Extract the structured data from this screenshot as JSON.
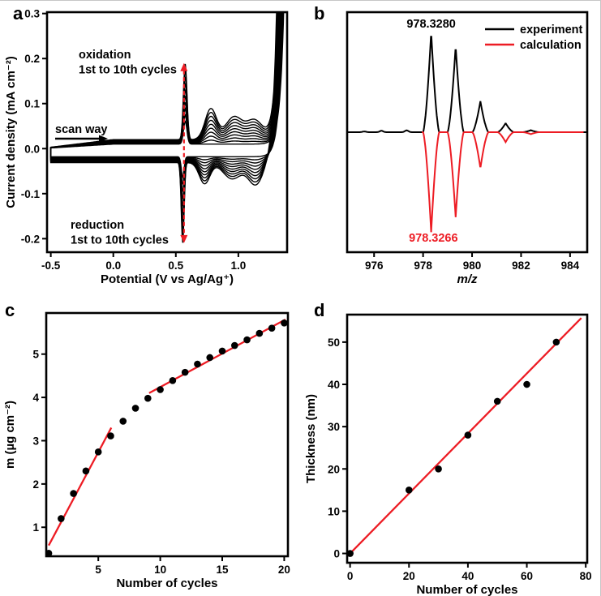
{
  "figure": {
    "background": "#ffffff",
    "frame_border_color": "#c6c6c6",
    "black": "#000000",
    "red": "#ed1c24"
  },
  "panels": {
    "a": {
      "label": "a"
    },
    "b": {
      "label": "b"
    },
    "c": {
      "label": "c"
    },
    "d": {
      "label": "d"
    }
  },
  "chart_data": [
    {
      "panel": "a",
      "type": "line",
      "subtype": "cyclic-voltammetry",
      "xlabel": "Potential (V vs Ag/Ag⁺)",
      "ylabel": "Current density (mA cm⁻²)",
      "xlim": [
        -0.53,
        1.39
      ],
      "ylim": [
        -0.23,
        0.303
      ],
      "xticks": [
        -0.5,
        0.0,
        0.5,
        1.0
      ],
      "xtick_labels": [
        "-0.5",
        "0.0",
        "0.5",
        "1.0"
      ],
      "yticks": [
        -0.2,
        -0.1,
        0.0,
        0.1,
        0.2,
        0.3
      ],
      "ytick_labels": [
        "-0.2",
        "-0.1",
        "0.0",
        "0.1",
        "0.2",
        "0.3"
      ],
      "n_cycles": 10,
      "line_color": "#000000",
      "cv_model": {
        "x_start": -0.5,
        "x_end": 1.39,
        "upper_baseline_first": 0.01,
        "upper_baseline_last": 0.02,
        "lower_baseline_first": -0.018,
        "lower_baseline_last": -0.031,
        "oxidation_peak": {
          "x": 0.575,
          "width": 0.02,
          "amp_first": 0.05,
          "amp_last": 0.168
        },
        "oxidation_humps": [
          {
            "x": 0.78,
            "width": 0.065,
            "amp": 0.068
          },
          {
            "x": 0.965,
            "width": 0.095,
            "amp": 0.05
          },
          {
            "x": 1.13,
            "width": 0.09,
            "amp": 0.042
          }
        ],
        "reduction_peak": {
          "x": 0.555,
          "width": 0.016,
          "amp_first": 0.045,
          "amp_last": 0.178
        },
        "reduction_humps": [
          {
            "x": 0.73,
            "width": 0.06,
            "amp": 0.047
          },
          {
            "x": 0.95,
            "width": 0.1,
            "amp": 0.036
          },
          {
            "x": 1.14,
            "width": 0.085,
            "amp": 0.05
          }
        ],
        "anodic_rise": {
          "onset_first": 1.365,
          "onset_last": 1.317,
          "tau": 0.03,
          "scale": 0.32
        },
        "return_rise": {
          "onset_first": 1.352,
          "onset_last": 1.304,
          "tau": 0.03,
          "scale": 0.32
        }
      },
      "annotations": {
        "oxidation": [
          "oxidation",
          "1st to 10th cycles"
        ],
        "scan_way": "scan way",
        "reduction": [
          "reduction",
          "1st to 10th cycles"
        ]
      },
      "peak_marker_arrow": {
        "x": 0.565,
        "y_top": 0.19,
        "y_bottom": -0.21,
        "color": "#ed1c24"
      }
    },
    {
      "panel": "b",
      "type": "line",
      "subtype": "mass-spectrum",
      "xlabel": "m/z",
      "xlabel_italic": true,
      "xlim": [
        974.9,
        984.7
      ],
      "ylim": [
        -120,
        120
      ],
      "xticks": [
        976,
        978,
        980,
        982,
        984
      ],
      "xtick_labels": [
        "976",
        "978",
        "980",
        "982",
        "984"
      ],
      "yticks": [],
      "ytick_labels": [],
      "peak_half_width": 0.33,
      "series": [
        {
          "name": "experiment",
          "color": "#000000",
          "direction": 1,
          "x_start": 974.9,
          "x_end": 984.7,
          "peaks": [
            [
              978.33,
              100
            ],
            [
              979.33,
              86
            ],
            [
              980.34,
              31
            ],
            [
              981.37,
              9
            ],
            [
              982.4,
              2
            ]
          ],
          "baseline_bumps": [
            [
              976.3,
              1.4
            ],
            [
              977.33,
              1.8
            ],
            [
              975.6,
              0.7
            ]
          ],
          "peak_label": {
            "text": "978.3280",
            "x": 978.33
          }
        },
        {
          "name": "calculation",
          "color": "#ed1c24",
          "direction": -1,
          "x_start": 977.95,
          "x_end": 984.55,
          "peaks": [
            [
              978.33,
              100
            ],
            [
              979.33,
              85
            ],
            [
              980.34,
              36
            ],
            [
              981.37,
              10
            ],
            [
              982.4,
              2
            ]
          ],
          "baseline_bumps": [],
          "peak_label": {
            "text": "978.3266",
            "x": 978.42
          }
        }
      ],
      "legend": [
        {
          "label": "experiment",
          "color": "#000000"
        },
        {
          "label": "calculation",
          "color": "#ed1c24"
        }
      ]
    },
    {
      "panel": "c",
      "type": "scatter",
      "xlabel": "Number of cycles",
      "ylabel": "m (µg cm⁻²)",
      "xlim": [
        0.8,
        20.3
      ],
      "ylim": [
        0.33,
        5.95
      ],
      "xticks": [
        5,
        10,
        15,
        20
      ],
      "xtick_labels": [
        "5",
        "10",
        "15",
        "20"
      ],
      "yticks": [
        1,
        2,
        3,
        4,
        5
      ],
      "ytick_labels": [
        "1",
        "2",
        "3",
        "4",
        "5"
      ],
      "marker_color": "#000000",
      "x": [
        1,
        2,
        3,
        4,
        5,
        6,
        7,
        8,
        9,
        10,
        11,
        12,
        13,
        14,
        15,
        16,
        17,
        18,
        19,
        20
      ],
      "y": [
        0.4,
        1.2,
        1.78,
        2.3,
        2.74,
        3.11,
        3.45,
        3.75,
        3.98,
        4.18,
        4.39,
        4.58,
        4.77,
        4.92,
        5.07,
        5.2,
        5.33,
        5.48,
        5.6,
        5.72
      ],
      "fit_lines": [
        {
          "x1": 1.0,
          "y1": 0.58,
          "x2": 6.05,
          "y2": 3.3,
          "color": "#ed1c24"
        },
        {
          "x1": 9.1,
          "y1": 4.1,
          "x2": 20.1,
          "y2": 5.8,
          "color": "#ed1c24"
        }
      ]
    },
    {
      "panel": "d",
      "type": "scatter",
      "xlabel": "Number of cycles",
      "ylabel": "Thickness (nm)",
      "xlim": [
        -1.0,
        80.5
      ],
      "ylim": [
        -2.2,
        56.5
      ],
      "xticks": [
        0,
        20,
        40,
        60,
        80
      ],
      "xtick_labels": [
        "0",
        "20",
        "40",
        "60",
        "80"
      ],
      "yticks": [
        0,
        10,
        20,
        30,
        40,
        50
      ],
      "ytick_labels": [
        "0",
        "10",
        "20",
        "30",
        "40",
        "50"
      ],
      "marker_color": "#000000",
      "x": [
        0,
        20,
        30,
        40,
        50,
        60,
        70
      ],
      "y": [
        0,
        15,
        20,
        28,
        36,
        40,
        50
      ],
      "fit_lines": [
        {
          "x1": 0,
          "y1": 0,
          "x2": 78.5,
          "y2": 55.7,
          "color": "#ed1c24"
        }
      ]
    }
  ]
}
